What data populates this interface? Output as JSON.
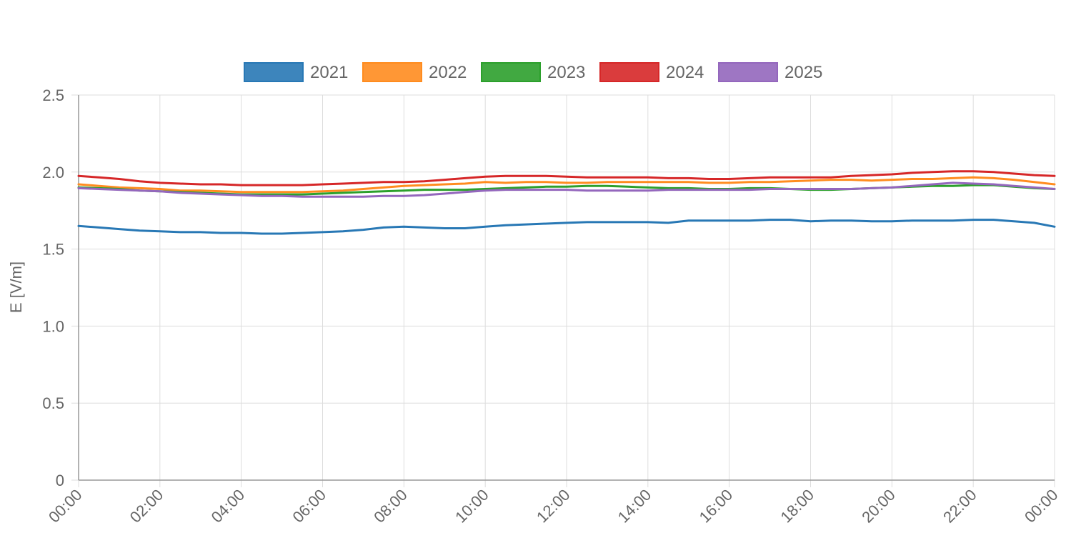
{
  "chart_data": {
    "type": "line",
    "title": "",
    "xlabel": "",
    "ylabel": "E [V/m]",
    "xlim": [
      0,
      24
    ],
    "ylim": [
      0,
      2.5
    ],
    "grid": true,
    "legend_position": "top-center",
    "x_ticks": [
      "00:00",
      "02:00",
      "04:00",
      "06:00",
      "08:00",
      "10:00",
      "12:00",
      "14:00",
      "16:00",
      "18:00",
      "20:00",
      "22:00",
      "00:00"
    ],
    "y_ticks": [
      "0",
      "0.5",
      "1.0",
      "1.5",
      "2.0",
      "2.5"
    ],
    "y_tick_values": [
      0,
      0.5,
      1.0,
      1.5,
      2.0,
      2.5
    ],
    "x_hours": [
      0,
      0.5,
      1,
      1.5,
      2,
      2.5,
      3,
      3.5,
      4,
      4.5,
      5,
      5.5,
      6,
      6.5,
      7,
      7.5,
      8,
      8.5,
      9,
      9.5,
      10,
      10.5,
      11,
      11.5,
      12,
      12.5,
      13,
      13.5,
      14,
      14.5,
      15,
      15.5,
      16,
      16.5,
      17,
      17.5,
      18,
      18.5,
      19,
      19.5,
      20,
      20.5,
      21,
      21.5,
      22,
      22.5,
      23,
      23.5,
      24
    ],
    "series": [
      {
        "name": "2021",
        "color": "#2878b5",
        "values": [
          1.65,
          1.64,
          1.63,
          1.62,
          1.615,
          1.61,
          1.61,
          1.605,
          1.605,
          1.6,
          1.6,
          1.605,
          1.61,
          1.615,
          1.625,
          1.64,
          1.645,
          1.64,
          1.635,
          1.635,
          1.645,
          1.655,
          1.66,
          1.665,
          1.67,
          1.675,
          1.675,
          1.675,
          1.675,
          1.67,
          1.685,
          1.685,
          1.685,
          1.685,
          1.69,
          1.69,
          1.68,
          1.685,
          1.685,
          1.68,
          1.68,
          1.685,
          1.685,
          1.685,
          1.69,
          1.69,
          1.68,
          1.67,
          1.645
        ]
      },
      {
        "name": "2022",
        "color": "#ff8c1f",
        "values": [
          1.92,
          1.91,
          1.9,
          1.895,
          1.89,
          1.88,
          1.88,
          1.875,
          1.87,
          1.87,
          1.87,
          1.87,
          1.875,
          1.88,
          1.89,
          1.9,
          1.91,
          1.915,
          1.92,
          1.925,
          1.935,
          1.93,
          1.935,
          1.935,
          1.93,
          1.93,
          1.935,
          1.935,
          1.935,
          1.935,
          1.935,
          1.93,
          1.93,
          1.935,
          1.935,
          1.94,
          1.945,
          1.95,
          1.95,
          1.945,
          1.95,
          1.955,
          1.955,
          1.96,
          1.965,
          1.96,
          1.95,
          1.935,
          1.92
        ]
      },
      {
        "name": "2023",
        "color": "#2ca02c",
        "values": [
          1.9,
          1.895,
          1.89,
          1.88,
          1.875,
          1.87,
          1.865,
          1.86,
          1.855,
          1.855,
          1.855,
          1.855,
          1.86,
          1.865,
          1.87,
          1.875,
          1.88,
          1.885,
          1.885,
          1.885,
          1.89,
          1.895,
          1.9,
          1.905,
          1.905,
          1.91,
          1.91,
          1.905,
          1.9,
          1.895,
          1.895,
          1.89,
          1.89,
          1.895,
          1.895,
          1.89,
          1.885,
          1.885,
          1.89,
          1.895,
          1.9,
          1.905,
          1.91,
          1.91,
          1.915,
          1.915,
          1.905,
          1.895,
          1.89
        ]
      },
      {
        "name": "2024",
        "color": "#d62728",
        "values": [
          1.975,
          1.965,
          1.955,
          1.94,
          1.93,
          1.925,
          1.92,
          1.92,
          1.915,
          1.915,
          1.915,
          1.915,
          1.92,
          1.925,
          1.93,
          1.935,
          1.935,
          1.94,
          1.95,
          1.96,
          1.97,
          1.975,
          1.975,
          1.975,
          1.97,
          1.965,
          1.965,
          1.965,
          1.965,
          1.96,
          1.96,
          1.955,
          1.955,
          1.96,
          1.965,
          1.965,
          1.965,
          1.965,
          1.975,
          1.98,
          1.985,
          1.995,
          2.0,
          2.005,
          2.005,
          2.0,
          1.99,
          1.98,
          1.975
        ]
      },
      {
        "name": "2025",
        "color": "#9467bd",
        "values": [
          1.895,
          1.89,
          1.885,
          1.88,
          1.875,
          1.865,
          1.86,
          1.855,
          1.85,
          1.845,
          1.845,
          1.84,
          1.84,
          1.84,
          1.84,
          1.845,
          1.845,
          1.85,
          1.86,
          1.87,
          1.88,
          1.885,
          1.885,
          1.885,
          1.885,
          1.88,
          1.88,
          1.88,
          1.88,
          1.885,
          1.885,
          1.885,
          1.885,
          1.885,
          1.89,
          1.89,
          1.89,
          1.89,
          1.89,
          1.895,
          1.9,
          1.91,
          1.92,
          1.93,
          1.925,
          1.92,
          1.91,
          1.9,
          1.89
        ]
      }
    ]
  }
}
